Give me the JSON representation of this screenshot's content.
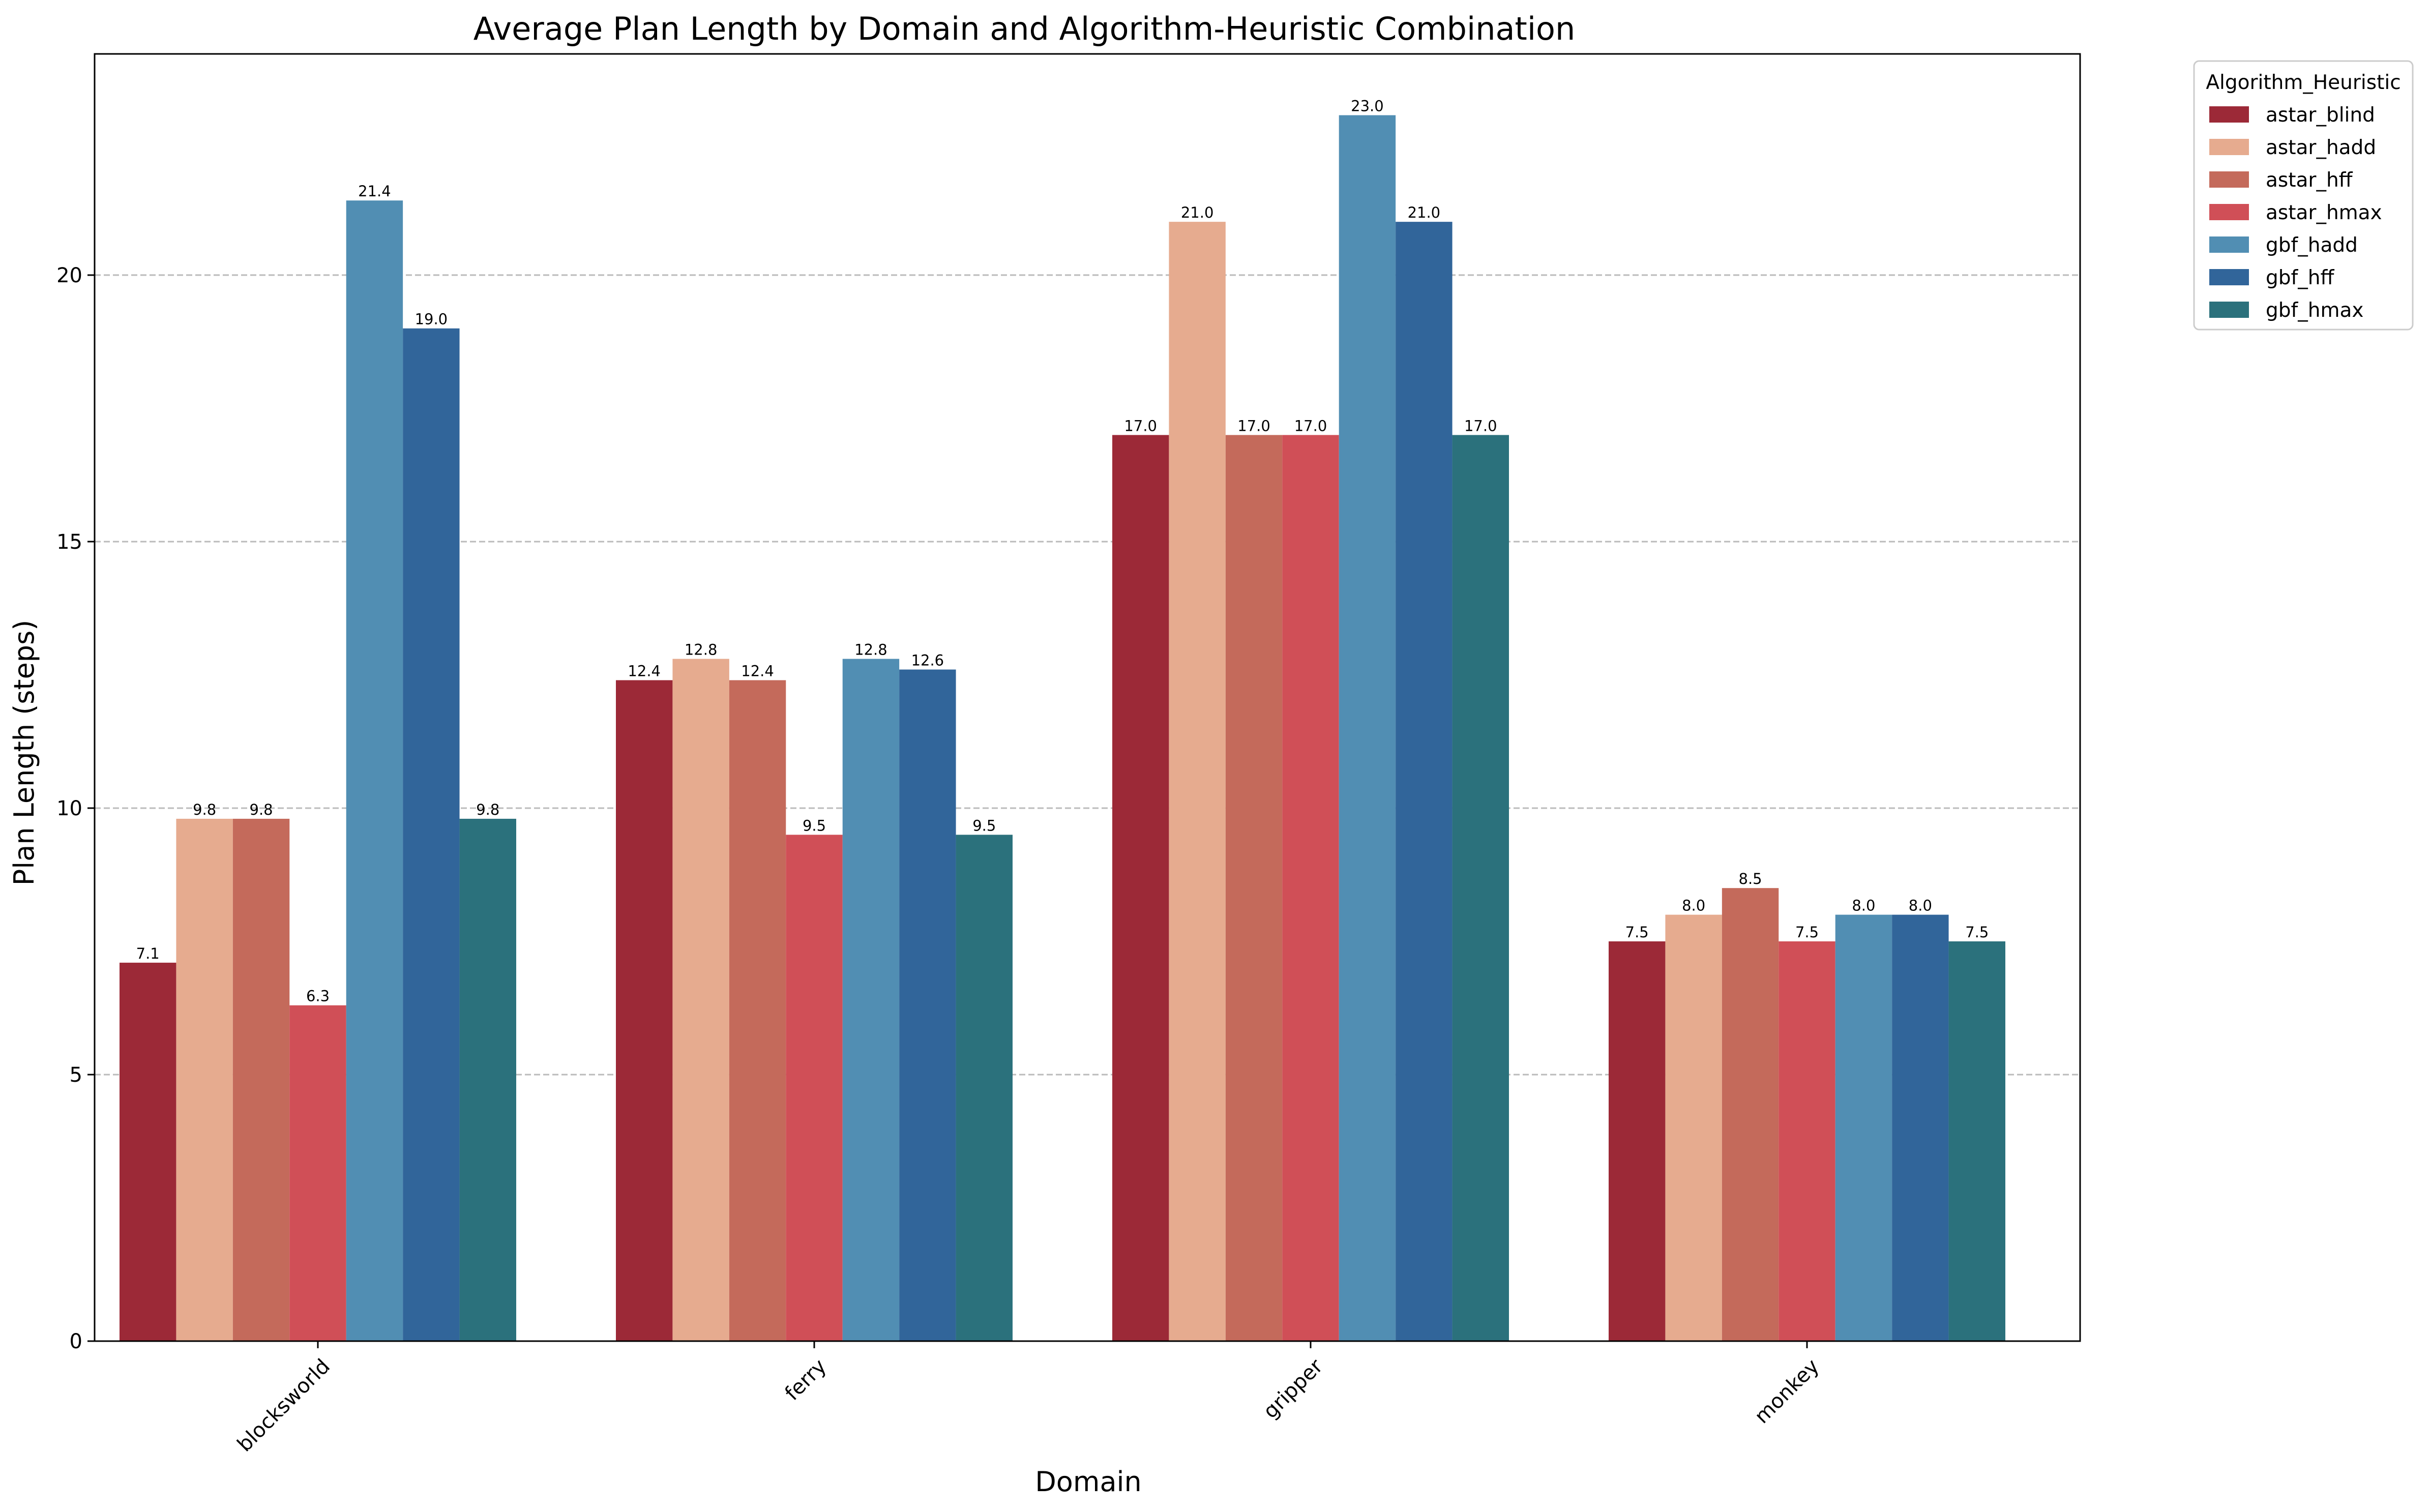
{
  "chart_data": {
    "type": "bar",
    "title": "Average Plan Length by Domain and Algorithm-Heuristic Combination",
    "xlabel": "Domain",
    "ylabel": "Plan Length (steps)",
    "categories": [
      "blocksworld",
      "ferry",
      "gripper",
      "monkey"
    ],
    "yticks": [
      0,
      5,
      10,
      15,
      20
    ],
    "ylim": [
      0,
      24.15
    ],
    "grid": "y, dashed",
    "legend_title": "Algorithm_Heuristic",
    "legend_position": "outside right, top",
    "series": [
      {
        "name": "astar_blind",
        "color": "#9c2937",
        "values": [
          7.1,
          12.4,
          17.0,
          7.5
        ],
        "labels": [
          "7.1",
          "12.4",
          "17.0",
          "7.5"
        ]
      },
      {
        "name": "astar_hadd",
        "color": "#e6ab8f",
        "values": [
          9.8,
          12.8,
          21.0,
          8.0
        ],
        "labels": [
          "9.8",
          "12.8",
          "21.0",
          "8.0"
        ]
      },
      {
        "name": "astar_hff",
        "color": "#c46a5b",
        "values": [
          9.8,
          12.4,
          17.0,
          8.5
        ],
        "labels": [
          "9.8",
          "12.4",
          "17.0",
          "8.5"
        ]
      },
      {
        "name": "astar_hmax",
        "color": "#d04f57",
        "values": [
          6.3,
          9.5,
          17.0,
          7.5
        ],
        "labels": [
          "6.3",
          "9.5",
          "17.0",
          "7.5"
        ]
      },
      {
        "name": "gbf_hadd",
        "color": "#518eb3",
        "values": [
          21.4,
          12.8,
          23.0,
          8.0
        ],
        "labels": [
          "21.4",
          "12.8",
          "23.0",
          "8.0"
        ]
      },
      {
        "name": "gbf_hff",
        "color": "#31659a",
        "values": [
          19.0,
          12.6,
          21.0,
          8.0
        ],
        "labels": [
          "19.0",
          "12.6",
          "21.0",
          "8.0"
        ]
      },
      {
        "name": "gbf_hmax",
        "color": "#2b717c",
        "values": [
          9.8,
          9.5,
          17.0,
          7.5
        ],
        "labels": [
          "9.8",
          "9.5",
          "17.0",
          "7.5"
        ]
      }
    ]
  }
}
